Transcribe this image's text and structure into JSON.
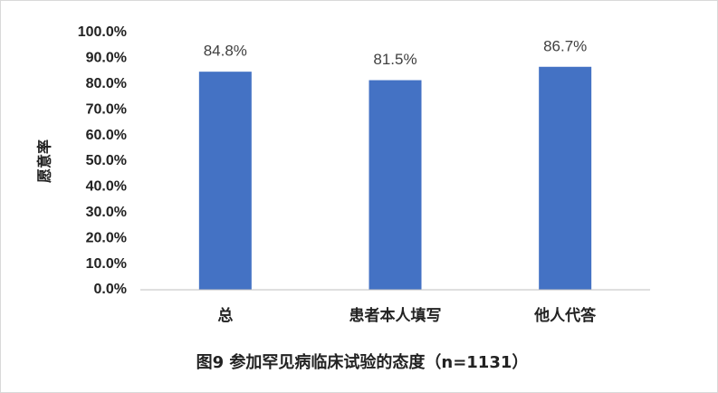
{
  "chart_data": {
    "type": "bar",
    "title": "图9 参加罕见病临床试验的态度（n=1131）",
    "y_label": "愿意率",
    "categories": [
      "总",
      "患者本人填写",
      "他人代答"
    ],
    "values": [
      84.8,
      81.5,
      86.7
    ],
    "value_labels": [
      "84.8%",
      "81.5%",
      "86.7%"
    ],
    "color": "#4472c4",
    "ylim": [
      0,
      100
    ],
    "yticks": [
      {
        "value": 0,
        "label": "0.0%"
      },
      {
        "value": 10,
        "label": "10.0%"
      },
      {
        "value": 20,
        "label": "20.0%"
      },
      {
        "value": 30,
        "label": "30.0%"
      },
      {
        "value": 40,
        "label": "40.0%"
      },
      {
        "value": 50,
        "label": "50.0%"
      },
      {
        "value": 60,
        "label": "60.0%"
      },
      {
        "value": 70,
        "label": "70.0%"
      },
      {
        "value": 80,
        "label": "80.0%"
      },
      {
        "value": 90,
        "label": "90.0%"
      },
      {
        "value": 100,
        "label": "100.0%"
      }
    ],
    "grid": false
  }
}
